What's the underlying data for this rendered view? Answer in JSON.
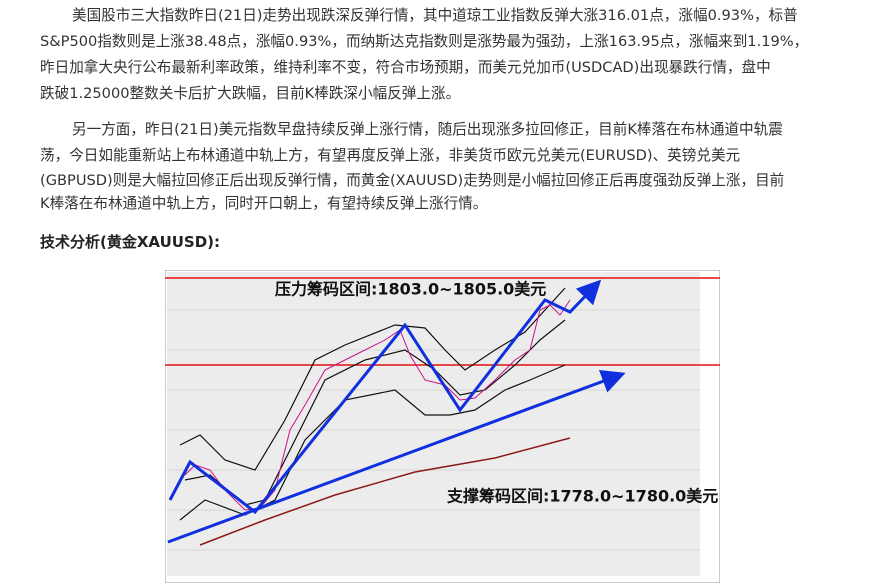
{
  "paragraphs": [
    {
      "lines": [
        "美国股市三大指数昨日(21日)走势出现跌深反弹行情，其中道琼工业指数反弹大涨316.01点，涨幅0.93%，标普",
        "S&P500指数则是上涨38.48点，涨幅0.93%，而纳斯达克指数则是涨势最为强劲，上涨163.95点，涨幅来到1.19%，",
        "昨日加拿大央行公布最新利率政策，维持利率不变，符合市场预期，而美元兑加币(USDCAD)出现暴跌行情，盘中",
        "跌破1.25000整数关卡后扩大跌幅，目前K棒跌深小幅反弹上涨。"
      ]
    },
    {
      "lines": [
        "另一方面，昨日(21日)美元指数早盘持续反弹上涨行情，随后出现涨多拉回修正，目前K棒落在布林通道中轨震",
        "荡，今日如能重新站上布林通道中轨上方，有望再度反弹上涨，非美货币欧元兑美元(EURUSD)、英镑兑美元",
        "(GBPUSD)则是大幅拉回修正后出现反弹行情，而黄金(XAUUSD)走势则是小幅拉回修正后再度强劲反弹上涨，目前",
        "K棒落在布林通道中轨上方，同时开口朝上，有望持续反弹上涨行情。"
      ]
    }
  ],
  "heading": "技术分析(黄金XAUUSD):",
  "figure": {
    "resistance_label": "压力筹码区间:1803.0~1805.0美元",
    "support_label": "支撑筹码区间:1778.0~1780.0美元"
  }
}
